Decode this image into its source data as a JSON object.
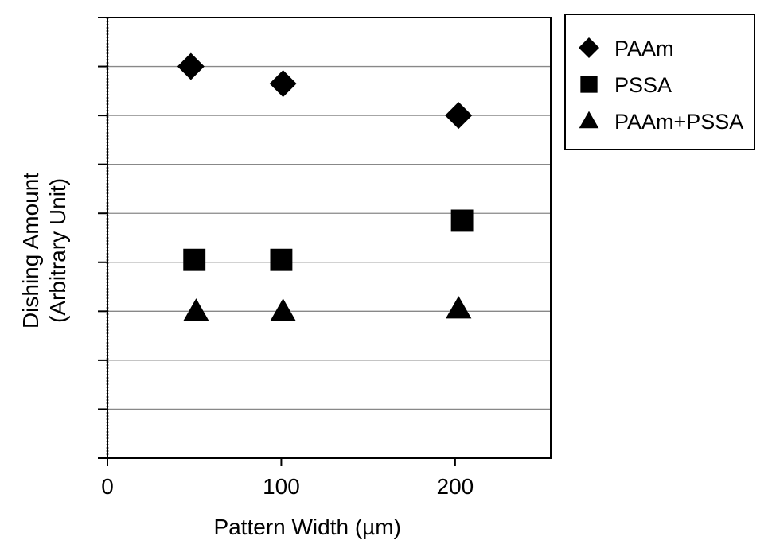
{
  "chart_data": {
    "type": "scatter",
    "title": "",
    "xlabel": "Pattern Width (µm)",
    "ylabel_line1": "Dishing Amount",
    "ylabel_line2": "(Arbitrary Unit)",
    "xlim": [
      0,
      255
    ],
    "ylim": [
      0,
      9
    ],
    "x_ticks": [
      0,
      100,
      200
    ],
    "x_tick_labels": [
      "0",
      "100",
      "200"
    ],
    "y_ticks": [
      0,
      1,
      2,
      3,
      4,
      5,
      6,
      7,
      8,
      9
    ],
    "y_tick_labels_shown": false,
    "grid": "horizontal",
    "legend_position": "outside-top-right",
    "series": [
      {
        "name": "PAAm",
        "marker": "diamond",
        "color": "#000000",
        "points": [
          {
            "x": 48,
            "y": 8.0
          },
          {
            "x": 101,
            "y": 7.65
          },
          {
            "x": 202,
            "y": 7.0
          }
        ]
      },
      {
        "name": "PSSA",
        "marker": "square",
        "color": "#000000",
        "points": [
          {
            "x": 50,
            "y": 4.05
          },
          {
            "x": 100,
            "y": 4.05
          },
          {
            "x": 204,
            "y": 4.85
          }
        ]
      },
      {
        "name": "PAAm+PSSA",
        "marker": "triangle",
        "color": "#000000",
        "points": [
          {
            "x": 51,
            "y": 3.0
          },
          {
            "x": 101,
            "y": 3.0
          },
          {
            "x": 202,
            "y": 3.05
          }
        ]
      }
    ]
  }
}
